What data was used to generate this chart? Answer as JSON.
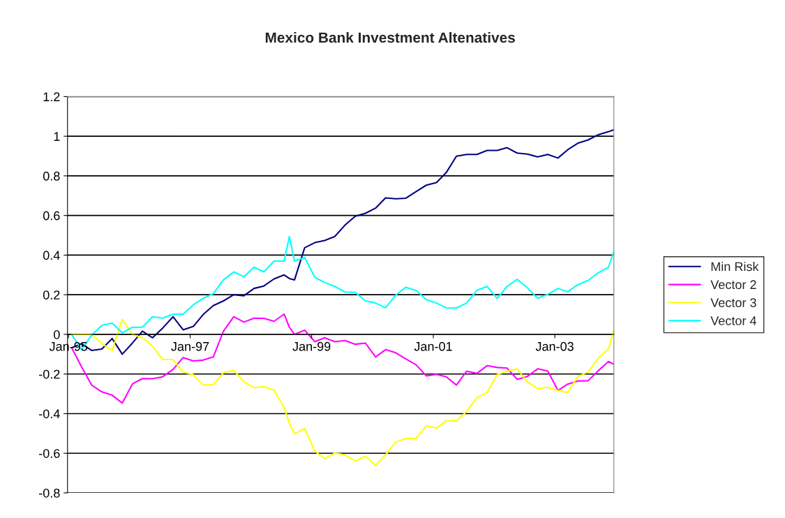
{
  "chart_data": {
    "type": "line",
    "title": "Mexico Bank Investment Altenatives",
    "x": [
      "1995-01-20",
      "1995-03-20",
      "1995-05-20",
      "1995-07-20",
      "1995-09-20",
      "1995-11-20",
      "1996-01-20",
      "1996-03-20",
      "1996-05-20",
      "1996-07-20",
      "1996-09-20",
      "1996-11-20",
      "1997-01-20",
      "1997-03-20",
      "1997-05-20",
      "1997-07-20",
      "1997-09-20",
      "1997-11-20",
      "1998-01-20",
      "1998-03-20",
      "1998-05-20",
      "1998-07-20",
      "1998-08-20",
      "1998-09-20",
      "1998-11-20",
      "1999-01-20",
      "1999-03-20",
      "1999-05-20",
      "1999-07-20",
      "1999-09-20",
      "1999-11-20",
      "2000-01-20",
      "2000-03-20",
      "2000-05-20",
      "2000-07-20",
      "2000-09-20",
      "2000-11-20",
      "2001-01-20",
      "2001-03-20",
      "2001-05-20",
      "2001-07-20",
      "2001-09-20",
      "2001-11-20",
      "2002-01-20",
      "2002-03-20",
      "2002-05-20",
      "2002-07-20",
      "2002-09-20",
      "2002-11-20",
      "2003-01-20",
      "2003-03-20",
      "2003-05-20",
      "2003-07-20",
      "2003-09-20",
      "2003-11-20",
      "2003-12-20"
    ],
    "series": [
      {
        "name": "Min Risk",
        "color": "#000080",
        "values": [
          -0.068,
          -0.047,
          -0.081,
          -0.074,
          -0.021,
          -0.1,
          -0.044,
          0.016,
          -0.017,
          0.032,
          0.089,
          0.023,
          0.04,
          0.1,
          0.145,
          0.169,
          0.2,
          0.195,
          0.232,
          0.244,
          0.28,
          0.3,
          0.282,
          0.275,
          0.437,
          0.463,
          0.474,
          0.494,
          0.551,
          0.596,
          0.611,
          0.637,
          0.689,
          0.684,
          0.687,
          0.721,
          0.753,
          0.766,
          0.817,
          0.899,
          0.908,
          0.908,
          0.928,
          0.928,
          0.942,
          0.915,
          0.91,
          0.896,
          0.908,
          0.89,
          0.932,
          0.965,
          0.981,
          1.008,
          1.023,
          1.032
        ]
      },
      {
        "name": "Vector 2",
        "color": "#ff00ff",
        "values": [
          -0.068,
          -0.163,
          -0.256,
          -0.29,
          -0.307,
          -0.347,
          -0.25,
          -0.223,
          -0.224,
          -0.214,
          -0.177,
          -0.117,
          -0.134,
          -0.13,
          -0.114,
          0.016,
          0.089,
          0.062,
          0.082,
          0.081,
          0.066,
          0.102,
          0.036,
          0.0,
          0.021,
          -0.037,
          -0.017,
          -0.037,
          -0.031,
          -0.05,
          -0.044,
          -0.114,
          -0.077,
          -0.093,
          -0.124,
          -0.154,
          -0.21,
          -0.202,
          -0.214,
          -0.256,
          -0.186,
          -0.197,
          -0.158,
          -0.167,
          -0.17,
          -0.227,
          -0.212,
          -0.174,
          -0.185,
          -0.283,
          -0.251,
          -0.235,
          -0.234,
          -0.183,
          -0.137,
          -0.15
        ]
      },
      {
        "name": "Vector 3",
        "color": "#ffff00",
        "values": [
          0.0,
          0.0,
          0.0,
          -0.046,
          -0.081,
          0.076,
          0.0,
          -0.017,
          -0.06,
          -0.127,
          -0.127,
          -0.191,
          -0.203,
          -0.256,
          -0.254,
          -0.194,
          -0.181,
          -0.239,
          -0.27,
          -0.263,
          -0.283,
          -0.369,
          -0.449,
          -0.502,
          -0.475,
          -0.588,
          -0.628,
          -0.599,
          -0.608,
          -0.639,
          -0.615,
          -0.661,
          -0.608,
          -0.544,
          -0.525,
          -0.525,
          -0.462,
          -0.473,
          -0.436,
          -0.437,
          -0.389,
          -0.32,
          -0.293,
          -0.203,
          -0.187,
          -0.174,
          -0.24,
          -0.274,
          -0.267,
          -0.283,
          -0.293,
          -0.212,
          -0.19,
          -0.12,
          -0.074,
          0.02
        ]
      },
      {
        "name": "Vector 4",
        "color": "#00ffff",
        "values": [
          0.0,
          -0.077,
          -0.004,
          0.045,
          0.057,
          0.008,
          0.036,
          0.036,
          0.089,
          0.082,
          0.102,
          0.102,
          0.149,
          0.182,
          0.205,
          0.275,
          0.315,
          0.291,
          0.339,
          0.315,
          0.37,
          0.37,
          0.494,
          0.37,
          0.388,
          0.288,
          0.262,
          0.242,
          0.214,
          0.212,
          0.169,
          0.158,
          0.134,
          0.198,
          0.238,
          0.222,
          0.175,
          0.158,
          0.134,
          0.133,
          0.158,
          0.222,
          0.242,
          0.182,
          0.242,
          0.278,
          0.235,
          0.182,
          0.202,
          0.232,
          0.215,
          0.251,
          0.272,
          0.311,
          0.339,
          0.414
        ]
      }
    ],
    "xlim": [
      "1994-12-26",
      "2003-12-22"
    ],
    "xticks": [
      {
        "value": "1995-01-01",
        "label": "Jan-95"
      },
      {
        "value": "1997-01-01",
        "label": "Jan-97"
      },
      {
        "value": "1999-01-01",
        "label": "Jan-99"
      },
      {
        "value": "2001-01-01",
        "label": "Jan-01"
      },
      {
        "value": "2003-01-01",
        "label": "Jan-03"
      }
    ],
    "ylim": [
      -0.8,
      1.2
    ],
    "yticks": [
      -0.8,
      -0.6,
      -0.4,
      -0.2,
      0,
      0.2,
      0.4,
      0.6,
      0.8,
      1,
      1.2
    ],
    "grid": "y",
    "legend": "right",
    "marker": "none",
    "line_style": "solid"
  }
}
